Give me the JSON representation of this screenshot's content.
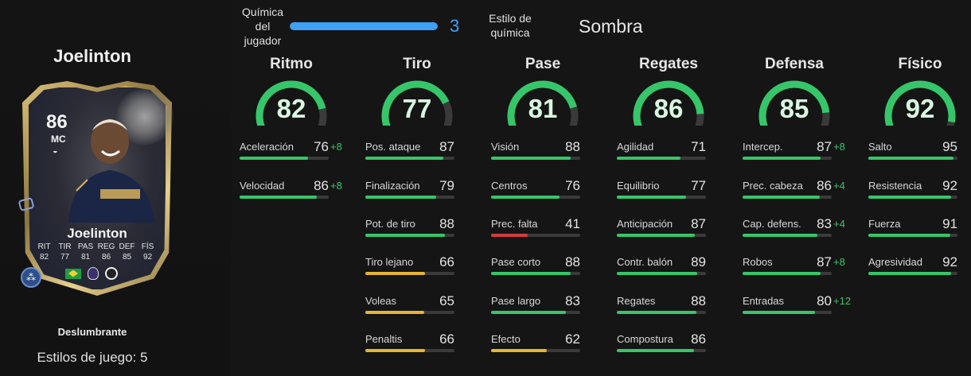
{
  "player": {
    "name": "Joelinton",
    "card_rating": "86",
    "card_position": "MC",
    "card_name": "Joelinton",
    "card_stat_labels": [
      "RIT",
      "TIR",
      "PAS",
      "REG",
      "DEF",
      "FÍS"
    ],
    "card_stat_values": [
      "82",
      "77",
      "81",
      "86",
      "85",
      "92"
    ],
    "edition": "Deslumbrante",
    "playstyles_text": "Estilos de juego: 5"
  },
  "chemistry": {
    "label": "Química del jugador",
    "value": "3",
    "fraction": 1.0,
    "style_label": "Estilo de química",
    "style_value": "Sombra"
  },
  "colors": {
    "green": "#36c66a",
    "yellow": "#e6b530",
    "red": "#d83a3a",
    "blue": "#3ea0f5",
    "gauge_track": "#3a3a3a"
  },
  "categories": [
    {
      "title": "Ritmo",
      "value": "82",
      "stats": [
        {
          "name": "Aceleración",
          "value": "76",
          "bonus": "+8"
        },
        {
          "name": "Velocidad",
          "value": "86",
          "bonus": "+8"
        }
      ]
    },
    {
      "title": "Tiro",
      "value": "77",
      "stats": [
        {
          "name": "Pos. ataque",
          "value": "87",
          "bonus": ""
        },
        {
          "name": "Finalización",
          "value": "79",
          "bonus": ""
        },
        {
          "name": "Pot. de tiro",
          "value": "88",
          "bonus": ""
        },
        {
          "name": "Tiro lejano",
          "value": "66",
          "bonus": ""
        },
        {
          "name": "Voleas",
          "value": "65",
          "bonus": ""
        },
        {
          "name": "Penaltis",
          "value": "66",
          "bonus": ""
        }
      ]
    },
    {
      "title": "Pase",
      "value": "81",
      "stats": [
        {
          "name": "Visión",
          "value": "88",
          "bonus": ""
        },
        {
          "name": "Centros",
          "value": "76",
          "bonus": ""
        },
        {
          "name": "Prec. falta",
          "value": "41",
          "bonus": ""
        },
        {
          "name": "Pase corto",
          "value": "88",
          "bonus": ""
        },
        {
          "name": "Pase largo",
          "value": "83",
          "bonus": ""
        },
        {
          "name": "Efecto",
          "value": "62",
          "bonus": ""
        }
      ]
    },
    {
      "title": "Regates",
      "value": "86",
      "stats": [
        {
          "name": "Agilidad",
          "value": "71",
          "bonus": ""
        },
        {
          "name": "Equilibrio",
          "value": "77",
          "bonus": ""
        },
        {
          "name": "Anticipación",
          "value": "87",
          "bonus": ""
        },
        {
          "name": "Contr. balón",
          "value": "89",
          "bonus": ""
        },
        {
          "name": "Regates",
          "value": "88",
          "bonus": ""
        },
        {
          "name": "Compostura",
          "value": "86",
          "bonus": ""
        }
      ]
    },
    {
      "title": "Defensa",
      "value": "85",
      "stats": [
        {
          "name": "Intercep.",
          "value": "87",
          "bonus": "+8"
        },
        {
          "name": "Prec. cabeza",
          "value": "86",
          "bonus": "+4"
        },
        {
          "name": "Cap. defens.",
          "value": "83",
          "bonus": "+4"
        },
        {
          "name": "Robos",
          "value": "87",
          "bonus": "+8"
        },
        {
          "name": "Entradas",
          "value": "80",
          "bonus": "+12"
        }
      ]
    },
    {
      "title": "Físico",
      "value": "92",
      "stats": [
        {
          "name": "Salto",
          "value": "95",
          "bonus": ""
        },
        {
          "name": "Resistencia",
          "value": "92",
          "bonus": ""
        },
        {
          "name": "Fuerza",
          "value": "91",
          "bonus": ""
        },
        {
          "name": "Agresividad",
          "value": "92",
          "bonus": ""
        }
      ]
    }
  ]
}
